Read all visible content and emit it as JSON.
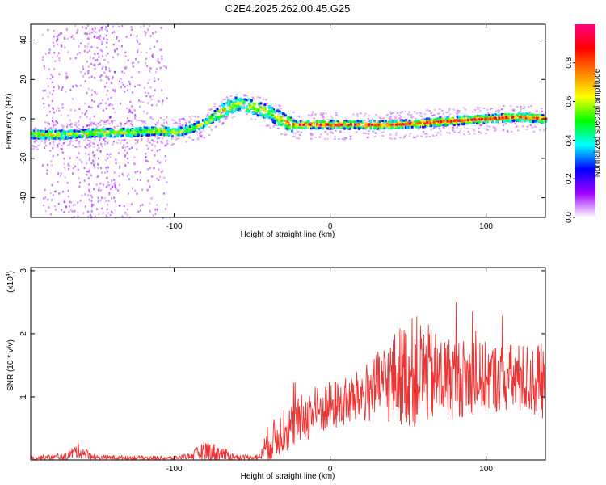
{
  "chart_data": [
    {
      "type": "heatmap",
      "title": "C2E4.2025.262.00.45.G25",
      "xlabel": "Height of straight line (km)",
      "ylabel": "Frequency (Hz)",
      "xlim": [
        -192,
        138
      ],
      "ylim": [
        -50,
        48
      ],
      "xticks": [
        -100,
        0,
        100
      ],
      "xtick_labels": [
        "-100",
        "0",
        "100"
      ],
      "yticks": [
        40,
        20,
        0,
        -20,
        -40
      ],
      "ytick_labels": [
        "40",
        "20",
        "0",
        "-20",
        "-40"
      ],
      "colorbar": {
        "label": "Normalized spectral amplitude",
        "range": [
          0,
          1
        ],
        "ticks": [
          0.0,
          0.2,
          0.4,
          0.6,
          0.8
        ],
        "tick_labels": [
          "0.0",
          "0.2",
          "0.4",
          "0.6",
          "0.8"
        ],
        "colormap": [
          "#ffffff",
          "#a000ff",
          "#0000ff",
          "#00ffff",
          "#00ff00",
          "#ffff00",
          "#ff8000",
          "#ff0000",
          "#ff0080"
        ]
      },
      "trend": [
        {
          "x": -190,
          "y": -8
        },
        {
          "x": -170,
          "y": -8
        },
        {
          "x": -150,
          "y": -7
        },
        {
          "x": -130,
          "y": -7
        },
        {
          "x": -110,
          "y": -6
        },
        {
          "x": -100,
          "y": -7
        },
        {
          "x": -90,
          "y": -5
        },
        {
          "x": -80,
          "y": -2
        },
        {
          "x": -70,
          "y": 4
        },
        {
          "x": -60,
          "y": 8
        },
        {
          "x": -50,
          "y": 6
        },
        {
          "x": -40,
          "y": 3
        },
        {
          "x": -30,
          "y": -1
        },
        {
          "x": -25,
          "y": -3
        },
        {
          "x": -10,
          "y": -3
        },
        {
          "x": 0,
          "y": -3
        },
        {
          "x": 20,
          "y": -3
        },
        {
          "x": 40,
          "y": -3
        },
        {
          "x": 60,
          "y": -2
        },
        {
          "x": 80,
          "y": -1
        },
        {
          "x": 100,
          "y": 0
        },
        {
          "x": 120,
          "y": 1
        },
        {
          "x": 137,
          "y": 0
        }
      ]
    },
    {
      "type": "line",
      "xlabel": "Height of straight line (km)",
      "ylabel": "SNR (10 * v/v)",
      "exponent_label": "(x10",
      "exponent_power": "4",
      "exponent_close": ")",
      "color": "#ee3333",
      "xlim": [
        -192,
        138
      ],
      "ylim": [
        0,
        3.05
      ],
      "xticks": [
        -100,
        0,
        100
      ],
      "xtick_labels": [
        "-100",
        "0",
        "100"
      ],
      "yticks": [
        1,
        2,
        3
      ],
      "ytick_labels": [
        "1",
        "2",
        "3"
      ],
      "envelope": [
        {
          "x": -192,
          "base": 0.03,
          "amp": 0.04
        },
        {
          "x": -170,
          "base": 0.05,
          "amp": 0.05
        },
        {
          "x": -162,
          "base": 0.15,
          "amp": 0.12
        },
        {
          "x": -150,
          "base": 0.04,
          "amp": 0.04
        },
        {
          "x": -100,
          "base": 0.03,
          "amp": 0.03
        },
        {
          "x": -90,
          "base": 0.06,
          "amp": 0.05
        },
        {
          "x": -80,
          "base": 0.14,
          "amp": 0.18
        },
        {
          "x": -70,
          "base": 0.1,
          "amp": 0.12
        },
        {
          "x": -60,
          "base": 0.04,
          "amp": 0.04
        },
        {
          "x": -45,
          "base": 0.05,
          "amp": 0.05
        },
        {
          "x": -40,
          "base": 0.25,
          "amp": 0.3
        },
        {
          "x": -30,
          "base": 0.45,
          "amp": 0.35
        },
        {
          "x": -15,
          "base": 0.7,
          "amp": 0.4
        },
        {
          "x": 0,
          "base": 0.85,
          "amp": 0.4
        },
        {
          "x": 15,
          "base": 0.95,
          "amp": 0.4
        },
        {
          "x": 30,
          "base": 1.15,
          "amp": 0.55
        },
        {
          "x": 45,
          "base": 1.35,
          "amp": 0.8
        },
        {
          "x": 55,
          "base": 1.4,
          "amp": 0.9
        },
        {
          "x": 70,
          "base": 1.3,
          "amp": 0.7
        },
        {
          "x": 90,
          "base": 1.3,
          "amp": 0.6
        },
        {
          "x": 110,
          "base": 1.3,
          "amp": 0.55
        },
        {
          "x": 138,
          "base": 1.25,
          "amp": 0.6
        }
      ]
    }
  ]
}
